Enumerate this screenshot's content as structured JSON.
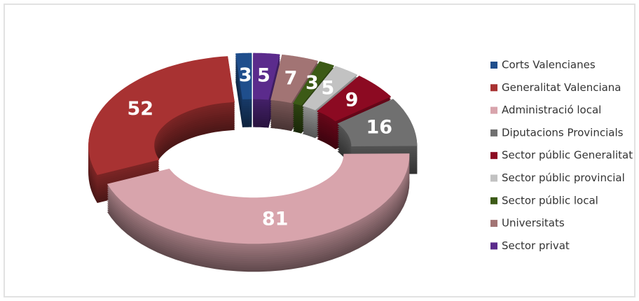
{
  "chart_data": {
    "type": "donut",
    "categories": [
      "Corts Valencianes",
      "Generalitat Valenciana",
      "Administració local",
      "Diputacions Provincials",
      "Sector públic Generalitat",
      "Sector públic provincial",
      "Sector públic local",
      "Universitats",
      "Sector privat"
    ],
    "values": [
      3,
      52,
      81,
      16,
      9,
      5,
      3,
      7,
      5
    ],
    "colors": [
      "#1f4e8c",
      "#a83232",
      "#d8a4ac",
      "#707070",
      "#8c0a22",
      "#c2c2c2",
      "#3c5a16",
      "#a27474",
      "#5b2b8c"
    ],
    "legend": "right"
  }
}
